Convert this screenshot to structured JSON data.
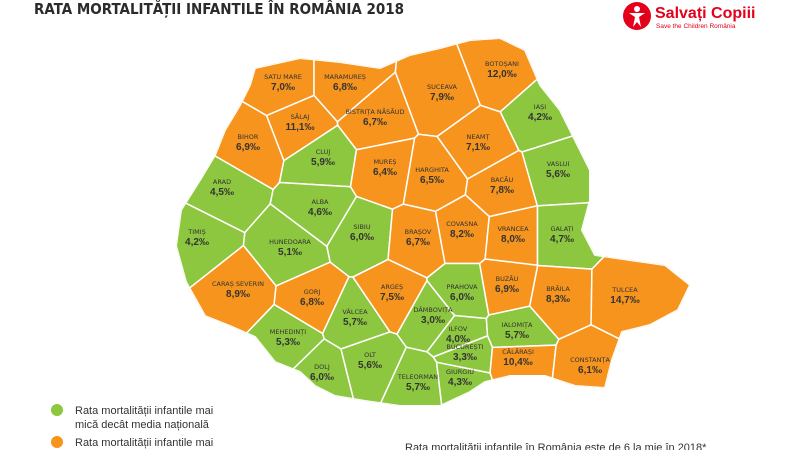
{
  "header": {
    "title": "RATA MORTALITĂȚII INFANTILE ÎN ROMÂNIA 2018"
  },
  "logo": {
    "name": "Salvați Copiii",
    "tagline": "Save the Children România"
  },
  "counties": [
    {
      "name": "SATU MARE",
      "rate": "7,0‰",
      "color": "#f7941d"
    },
    {
      "name": "MARAMUREȘ",
      "rate": "6,8‰",
      "color": "#f7941d"
    },
    {
      "name": "SUCEAVA",
      "rate": "7,9‰",
      "color": "#f7941d"
    },
    {
      "name": "BOTOȘANI",
      "rate": "12,0‰",
      "color": "#f7941d"
    },
    {
      "name": "SĂLAJ",
      "rate": "11,1‰",
      "color": "#f7941d"
    },
    {
      "name": "BISTRIȚA NĂSĂUD",
      "rate": "6,7‰",
      "color": "#f7941d"
    },
    {
      "name": "IAȘI",
      "rate": "4,2‰",
      "color": "#8dc63f"
    },
    {
      "name": "BIHOR",
      "rate": "6,9‰",
      "color": "#f7941d"
    },
    {
      "name": "CLUJ",
      "rate": "5,9‰",
      "color": "#8dc63f"
    },
    {
      "name": "MUREȘ",
      "rate": "6,4‰",
      "color": "#f7941d"
    },
    {
      "name": "NEAMȚ",
      "rate": "7,1‰",
      "color": "#f7941d"
    },
    {
      "name": "HARGHITA",
      "rate": "6,5‰",
      "color": "#f7941d"
    },
    {
      "name": "BACĂU",
      "rate": "7,8‰",
      "color": "#f7941d"
    },
    {
      "name": "VASLUI",
      "rate": "5,6‰",
      "color": "#8dc63f"
    },
    {
      "name": "ARAD",
      "rate": "4,5‰",
      "color": "#8dc63f"
    },
    {
      "name": "ALBA",
      "rate": "4,6‰",
      "color": "#8dc63f"
    },
    {
      "name": "SIBIU",
      "rate": "6,0‰",
      "color": "#8dc63f"
    },
    {
      "name": "BRAȘOV",
      "rate": "6,7‰",
      "color": "#f7941d"
    },
    {
      "name": "COVASNA",
      "rate": "8,2‰",
      "color": "#f7941d"
    },
    {
      "name": "VRANCEA",
      "rate": "8,0‰",
      "color": "#f7941d"
    },
    {
      "name": "GALAȚI",
      "rate": "4,7‰",
      "color": "#8dc63f"
    },
    {
      "name": "TIMIȘ",
      "rate": "4,2‰",
      "color": "#8dc63f"
    },
    {
      "name": "HUNEDOARA",
      "rate": "5,1‰",
      "color": "#8dc63f"
    },
    {
      "name": "CARAȘ SEVERIN",
      "rate": "8,9‰",
      "color": "#f7941d"
    },
    {
      "name": "GORJ",
      "rate": "6,8‰",
      "color": "#f7941d"
    },
    {
      "name": "VÂLCEA",
      "rate": "5,7‰",
      "color": "#8dc63f"
    },
    {
      "name": "ARGEȘ",
      "rate": "7,5‰",
      "color": "#f7941d"
    },
    {
      "name": "DÂMBOVIȚA",
      "rate": "3,0‰",
      "color": "#8dc63f"
    },
    {
      "name": "PRAHOVA",
      "rate": "6,0‰",
      "color": "#8dc63f"
    },
    {
      "name": "BUZĂU",
      "rate": "6,9‰",
      "color": "#f7941d"
    },
    {
      "name": "BRĂILA",
      "rate": "8,3‰",
      "color": "#f7941d"
    },
    {
      "name": "TULCEA",
      "rate": "14,7‰",
      "color": "#f7941d"
    },
    {
      "name": "MEHEDINȚI",
      "rate": "5,3‰",
      "color": "#8dc63f"
    },
    {
      "name": "ILFOV",
      "rate": "4,0‰",
      "color": "#8dc63f"
    },
    {
      "name": "IALOMIȚA",
      "rate": "5,7‰",
      "color": "#8dc63f"
    },
    {
      "name": "BUCUREȘTI",
      "rate": "3,3‰",
      "color": "#8dc63f"
    },
    {
      "name": "CĂLĂRAȘI",
      "rate": "10,4‰",
      "color": "#f7941d"
    },
    {
      "name": "CONSTANȚA",
      "rate": "6,1‰",
      "color": "#f7941d"
    },
    {
      "name": "DOLJ",
      "rate": "6,0‰",
      "color": "#8dc63f"
    },
    {
      "name": "OLT",
      "rate": "5,6‰",
      "color": "#8dc63f"
    },
    {
      "name": "TELEORMAN",
      "rate": "5,7‰",
      "color": "#8dc63f"
    },
    {
      "name": "GIURGIU",
      "rate": "4,3‰",
      "color": "#8dc63f"
    }
  ],
  "legend": [
    {
      "lines": [
        "Rata mortalității infantile mai",
        "mică decât media națională"
      ],
      "color": "#8dc63f"
    },
    {
      "lines": [
        "Rata mortalității infantile mai"
      ],
      "color": "#f7941d"
    }
  ],
  "footer": {
    "note": "Rata mortalității infantile în România este de 6 la mie în 2018*"
  }
}
